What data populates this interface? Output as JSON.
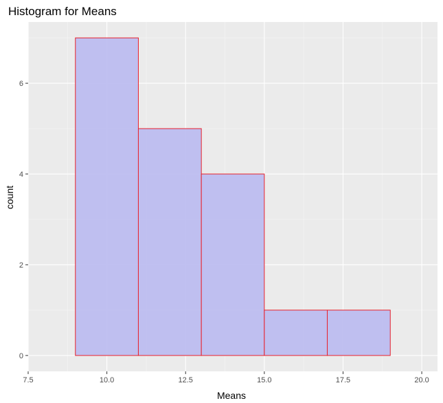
{
  "chart_data": {
    "type": "bar",
    "title": "Histogram for Means",
    "xlabel": "Means",
    "ylabel": "count",
    "xlim": [
      7.5,
      20.5
    ],
    "ylim": [
      -0.35,
      7.35
    ],
    "x_ticks": [
      7.5,
      10.0,
      12.5,
      15.0,
      17.5,
      20.0
    ],
    "x_tick_labels": [
      "7.5",
      "10.0",
      "12.5",
      "15.0",
      "17.5",
      "20.0"
    ],
    "y_ticks": [
      0,
      2,
      4,
      6
    ],
    "y_tick_labels": [
      "0",
      "2",
      "4",
      "6"
    ],
    "bins": [
      {
        "start": 9,
        "end": 11,
        "count": 7
      },
      {
        "start": 11,
        "end": 13,
        "count": 5
      },
      {
        "start": 13,
        "end": 15,
        "count": 4
      },
      {
        "start": 15,
        "end": 17,
        "count": 1
      },
      {
        "start": 17,
        "end": 19,
        "count": 1
      }
    ],
    "grid": true,
    "legend": "none",
    "colors": {
      "panel_background": "#ebebeb",
      "grid_major": "#ffffff",
      "grid_minor": "#f5f5f5",
      "bar_fill": "#bdbdf0",
      "bar_stroke": "#e8202a",
      "tick_mark": "#333333"
    }
  }
}
